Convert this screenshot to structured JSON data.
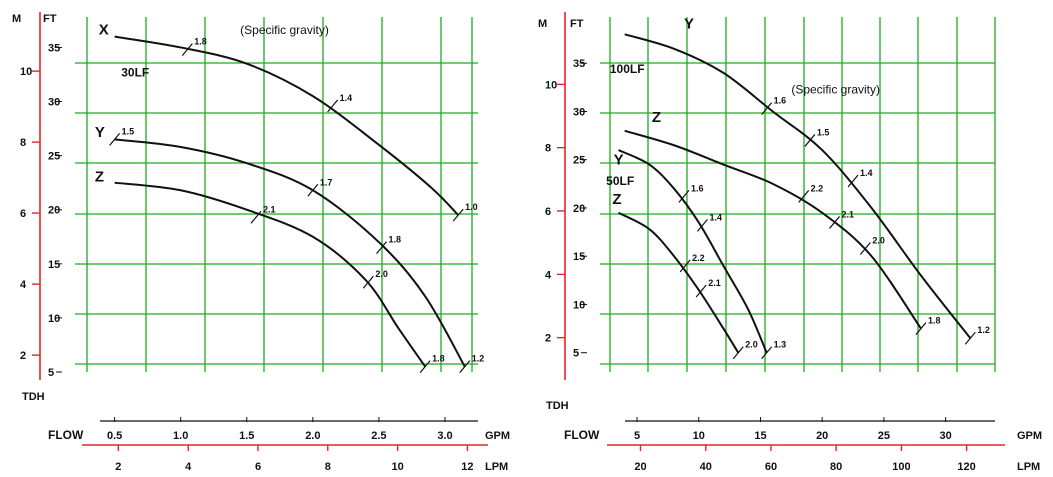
{
  "chart_data": [
    {
      "type": "line",
      "title": "",
      "xlabel": "FLOW",
      "x_unit_primary": "GPM",
      "x_unit_secondary": "LPM",
      "y_label_bottom": "TDH",
      "y_unit_primary": "FT",
      "y_unit_secondary": "M",
      "xlim": [
        0.2,
        3.25
      ],
      "ylim": [
        5,
        38
      ],
      "x_ticks": [
        "0.5",
        "1.0",
        "1.5",
        "2.0",
        "2.5",
        "3.0"
      ],
      "x_tick_values": [
        0.5,
        1.0,
        1.5,
        2.0,
        2.5,
        3.0
      ],
      "x2_ticks": [
        "2",
        "4",
        "6",
        "8",
        "10",
        "12"
      ],
      "x2_tick_values_gpm": [
        0.528,
        1.057,
        1.585,
        2.113,
        2.642,
        3.17
      ],
      "y_ticks": [
        "5",
        "10",
        "15",
        "20",
        "25",
        "30",
        "35"
      ],
      "y_tick_values": [
        5,
        10,
        15,
        20,
        25,
        30,
        35
      ],
      "y2_ticks": [
        "2",
        "4",
        "6",
        "8",
        "10"
      ],
      "y2_tick_values_ft": [
        6.56,
        13.12,
        19.69,
        26.25,
        32.81
      ],
      "grid": true,
      "model_labels": [
        {
          "text": "30LF",
          "x": 0.55,
          "y": 32.3
        }
      ],
      "annotation_text": "(Specific gravity)",
      "annotation_anchor": {
        "x": 1.45,
        "y": 36.6
      },
      "series": [
        {
          "name": "X",
          "label_at": {
            "x": 0.38,
            "y": 36.2
          },
          "points": [
            [
              0.5,
              36
            ],
            [
              1.0,
              35
            ],
            [
              1.5,
              33.5
            ],
            [
              2.0,
              30.5
            ],
            [
              2.5,
              26
            ],
            [
              2.9,
              22
            ],
            [
              3.1,
              19.5
            ]
          ],
          "sg_marks": [
            {
              "label": "1.8",
              "x": 1.05,
              "y": 34.8
            },
            {
              "label": "1.4",
              "x": 2.15,
              "y": 29.6
            },
            {
              "label": "1.0",
              "x": 3.1,
              "y": 19.5
            }
          ]
        },
        {
          "name": "Y",
          "label_at": {
            "x": 0.35,
            "y": 26.7
          },
          "points": [
            [
              0.5,
              26.5
            ],
            [
              1.0,
              25.8
            ],
            [
              1.5,
              24.3
            ],
            [
              2.0,
              21.8
            ],
            [
              2.5,
              17
            ],
            [
              2.85,
              12
            ],
            [
              3.15,
              5.5
            ]
          ],
          "sg_marks": [
            {
              "label": "1.5",
              "x": 0.5,
              "y": 26.5
            },
            {
              "label": "1.7",
              "x": 2.0,
              "y": 21.8
            },
            {
              "label": "1.8",
              "x": 2.52,
              "y": 16.5
            },
            {
              "label": "1.2",
              "x": 3.15,
              "y": 5.5
            }
          ]
        },
        {
          "name": "Z",
          "label_at": {
            "x": 0.35,
            "y": 22.6
          },
          "points": [
            [
              0.5,
              22.5
            ],
            [
              1.0,
              21.8
            ],
            [
              1.5,
              20
            ],
            [
              2.0,
              17.5
            ],
            [
              2.4,
              13.5
            ],
            [
              2.65,
              9
            ],
            [
              2.85,
              5.5
            ]
          ],
          "sg_marks": [
            {
              "label": "2.1",
              "x": 1.57,
              "y": 19.3
            },
            {
              "label": "2.0",
              "x": 2.42,
              "y": 13.3
            },
            {
              "label": "1.8",
              "x": 2.85,
              "y": 5.5
            }
          ]
        }
      ]
    },
    {
      "type": "line",
      "title": "",
      "xlabel": "FLOW",
      "x_unit_primary": "GPM",
      "x_unit_secondary": "LPM",
      "y_label_bottom": "TDH",
      "y_unit_primary": "FT",
      "y_unit_secondary": "M",
      "xlim": [
        2,
        34
      ],
      "ylim": [
        3,
        40
      ],
      "x_ticks": [
        "5",
        "10",
        "15",
        "20",
        "25",
        "30"
      ],
      "x_tick_values": [
        5,
        10,
        15,
        20,
        25,
        30
      ],
      "x2_ticks": [
        "20",
        "40",
        "60",
        "80",
        "100",
        "120"
      ],
      "x2_tick_values_gpm": [
        5.28,
        10.57,
        15.85,
        21.13,
        26.42,
        31.7
      ],
      "y_ticks": [
        "5",
        "10",
        "15",
        "20",
        "25",
        "30",
        "35"
      ],
      "y_tick_values": [
        5,
        10,
        15,
        20,
        25,
        30,
        35
      ],
      "y2_ticks": [
        "2",
        "4",
        "6",
        "8",
        "10"
      ],
      "y2_tick_values_ft": [
        6.56,
        13.12,
        19.69,
        26.25,
        32.81
      ],
      "grid": true,
      "model_labels": [
        {
          "text": "100LF",
          "x": 2.8,
          "y": 34
        },
        {
          "text": "50LF",
          "x": 2.5,
          "y": 22.4
        }
      ],
      "annotation_text": "(Specific gravity)",
      "annotation_anchor": {
        "x": 17.5,
        "y": 32.3
      },
      "series": [
        {
          "name": "Y",
          "label_at": {
            "x": 8.8,
            "y": 38.6
          },
          "points": [
            [
              4,
              38
            ],
            [
              8,
              36.5
            ],
            [
              12,
              34
            ],
            [
              16,
              30
            ],
            [
              20,
              26
            ],
            [
              24,
              20
            ],
            [
              28,
              13
            ],
            [
              32,
              6.5
            ]
          ],
          "sg_marks": [
            {
              "label": "1.6",
              "x": 15.5,
              "y": 30.3
            },
            {
              "label": "1.5",
              "x": 19,
              "y": 27
            },
            {
              "label": "1.4",
              "x": 22.5,
              "y": 22.8
            },
            {
              "label": "1.2",
              "x": 32,
              "y": 6.5
            }
          ]
        },
        {
          "name": "Z",
          "label_at": {
            "x": 6.2,
            "y": 28.9
          },
          "points": [
            [
              4,
              28
            ],
            [
              8,
              26.5
            ],
            [
              12,
              24.5
            ],
            [
              16,
              22.5
            ],
            [
              20,
              19.5
            ],
            [
              24,
              15
            ],
            [
              28,
              7.5
            ]
          ],
          "sg_marks": [
            {
              "label": "2.2",
              "x": 18.5,
              "y": 21.2
            },
            {
              "label": "2.1",
              "x": 21,
              "y": 18.5
            },
            {
              "label": "2.0",
              "x": 23.5,
              "y": 15.8
            },
            {
              "label": "1.8",
              "x": 28,
              "y": 7.5
            }
          ]
        },
        {
          "name": "Y",
          "label_at": {
            "x": 3.1,
            "y": 24.5
          },
          "points": [
            [
              3.5,
              26
            ],
            [
              6,
              24.5
            ],
            [
              8,
              22
            ],
            [
              10,
              18.5
            ],
            [
              12,
              14
            ],
            [
              14,
              9.5
            ],
            [
              15.5,
              5
            ]
          ],
          "sg_marks": [
            {
              "label": "1.6",
              "x": 8.8,
              "y": 21.2
            },
            {
              "label": "1.4",
              "x": 10.3,
              "y": 18.2
            },
            {
              "label": "1.3",
              "x": 15.5,
              "y": 5
            }
          ]
        },
        {
          "name": "Z",
          "label_at": {
            "x": 3.0,
            "y": 20.4
          },
          "points": [
            [
              3.5,
              19.5
            ],
            [
              6,
              17.8
            ],
            [
              8,
              15
            ],
            [
              10,
              11.5
            ],
            [
              12,
              7.5
            ],
            [
              13.2,
              5
            ]
          ],
          "sg_marks": [
            {
              "label": "2.2",
              "x": 8.9,
              "y": 14
            },
            {
              "label": "2.1",
              "x": 10.2,
              "y": 11.4
            },
            {
              "label": "2.0",
              "x": 13.2,
              "y": 5
            }
          ]
        }
      ]
    }
  ]
}
